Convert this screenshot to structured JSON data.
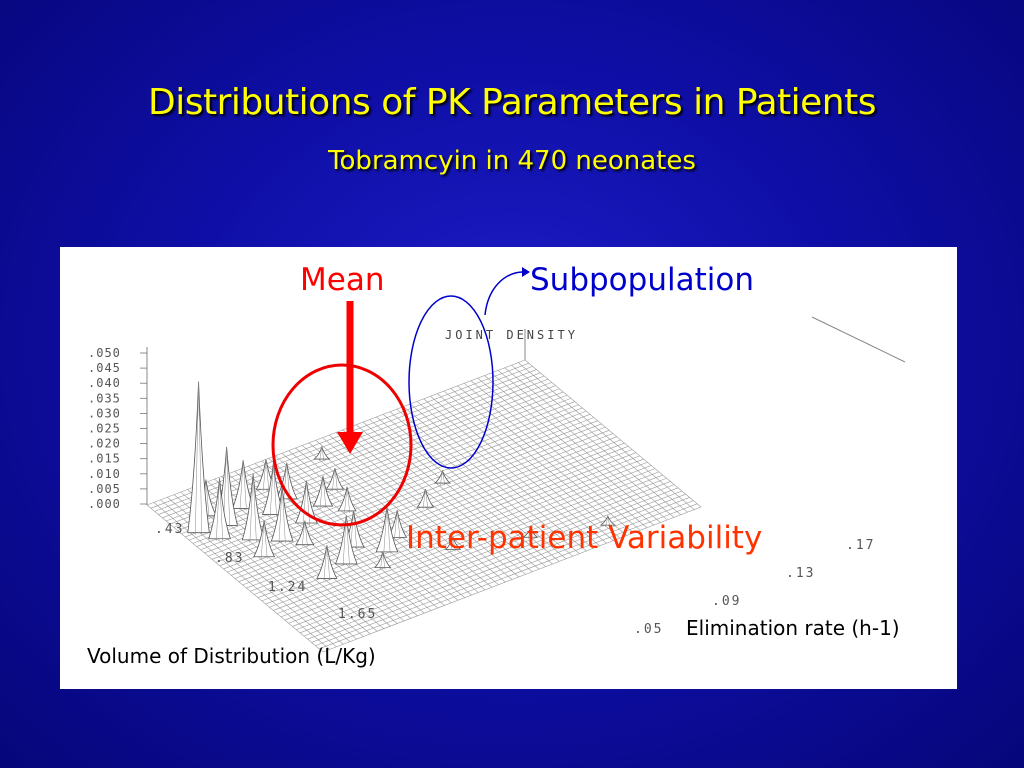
{
  "slide": {
    "title": "Distributions of PK Parameters in Patients",
    "subtitle": "Tobramcyin in 470 neonates"
  },
  "annotations": {
    "mean": "Mean",
    "subpopulation": "Subpopulation",
    "variability": "Inter-patient Variability",
    "vd_label": "Volume of Distribution (L/Kg)",
    "ke_label": "Elimination rate (h-1)"
  },
  "colors": {
    "title": "#ffff00",
    "mean": "#ff0000",
    "subpopulation": "#0000cc",
    "variability": "#ff3300"
  },
  "chart_data": {
    "type": "surface",
    "title": "JOINT DENSITY",
    "z_ticks": [
      ".050",
      ".045",
      ".040",
      ".035",
      ".030",
      ".025",
      ".020",
      ".015",
      ".010",
      ".005",
      ".000"
    ],
    "vd_ticks": [
      ".43",
      ".83",
      "1.24",
      "1.65"
    ],
    "ke_ticks": [
      ".05",
      ".09",
      ".13",
      ".17"
    ],
    "zlim": [
      0,
      0.05
    ],
    "peaks": [
      {
        "vd": 0.7,
        "ke": 0.166,
        "density": 0.05
      },
      {
        "vd": 0.72,
        "ke": 0.158,
        "density": 0.026
      },
      {
        "vd": 0.78,
        "ke": 0.163,
        "density": 0.02
      },
      {
        "vd": 0.86,
        "ke": 0.156,
        "density": 0.022
      },
      {
        "vd": 0.93,
        "ke": 0.15,
        "density": 0.018
      },
      {
        "vd": 0.66,
        "ke": 0.15,
        "density": 0.016
      },
      {
        "vd": 0.76,
        "ke": 0.145,
        "density": 0.017
      },
      {
        "vd": 0.88,
        "ke": 0.14,
        "density": 0.014
      },
      {
        "vd": 0.62,
        "ke": 0.16,
        "density": 0.012
      },
      {
        "vd": 0.98,
        "ke": 0.158,
        "density": 0.012
      },
      {
        "vd": 0.7,
        "ke": 0.138,
        "density": 0.012
      },
      {
        "vd": 0.82,
        "ke": 0.132,
        "density": 0.01
      },
      {
        "vd": 0.6,
        "ke": 0.14,
        "density": 0.01
      },
      {
        "vd": 1.0,
        "ke": 0.146,
        "density": 0.008
      },
      {
        "vd": 0.9,
        "ke": 0.128,
        "density": 0.008
      },
      {
        "vd": 0.75,
        "ke": 0.125,
        "density": 0.007
      },
      {
        "vd": 1.2,
        "ke": 0.142,
        "density": 0.016
      },
      {
        "vd": 1.22,
        "ke": 0.13,
        "density": 0.015
      },
      {
        "vd": 1.12,
        "ke": 0.136,
        "density": 0.012
      },
      {
        "vd": 1.24,
        "ke": 0.15,
        "density": 0.011
      },
      {
        "vd": 1.16,
        "ke": 0.124,
        "density": 0.009
      },
      {
        "vd": 1.05,
        "ke": 0.11,
        "density": 0.006
      },
      {
        "vd": 0.95,
        "ke": 0.1,
        "density": 0.004
      },
      {
        "vd": 1.35,
        "ke": 0.115,
        "density": 0.004
      },
      {
        "vd": 1.45,
        "ke": 0.095,
        "density": 0.003
      },
      {
        "vd": 1.55,
        "ke": 0.075,
        "density": 0.003
      },
      {
        "vd": 0.55,
        "ke": 0.12,
        "density": 0.004
      },
      {
        "vd": 1.3,
        "ke": 0.135,
        "density": 0.005
      }
    ]
  }
}
